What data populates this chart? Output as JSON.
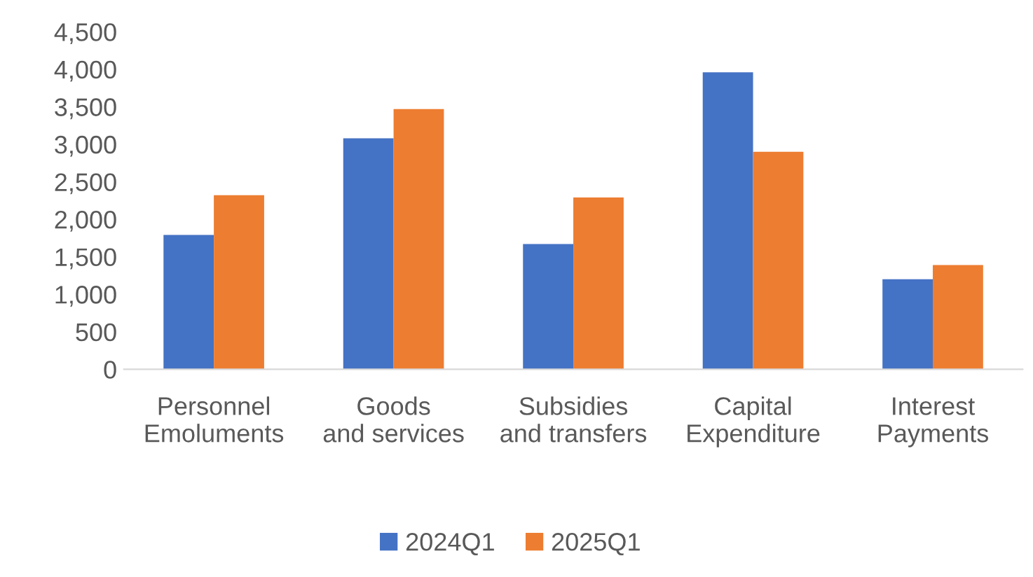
{
  "chart_data": {
    "type": "bar",
    "categories": [
      "Personnel\nEmoluments",
      "Goods\nand services",
      "Subsidies\nand transfers",
      "Capital\nExpenditure",
      "Interest\nPayments"
    ],
    "series": [
      {
        "name": "2024Q1",
        "color": "#4472c4",
        "values": [
          1790,
          3080,
          1670,
          3960,
          1200
        ]
      },
      {
        "name": "2025Q1",
        "color": "#ed7d31",
        "values": [
          2320,
          3470,
          2290,
          2900,
          1390
        ]
      }
    ],
    "ylim": [
      0,
      4500
    ],
    "yticks": [
      {
        "value": 0,
        "label": "0"
      },
      {
        "value": 500,
        "label": "500"
      },
      {
        "value": 1000,
        "label": "1,000"
      },
      {
        "value": 1500,
        "label": "1,500"
      },
      {
        "value": 2000,
        "label": "2,000"
      },
      {
        "value": 2500,
        "label": "2,500"
      },
      {
        "value": 3000,
        "label": "3,000"
      },
      {
        "value": 3500,
        "label": "3,500"
      },
      {
        "value": 4000,
        "label": "4,000"
      },
      {
        "value": 4500,
        "label": "4,500"
      }
    ],
    "grid": false,
    "legend": "bottom"
  }
}
